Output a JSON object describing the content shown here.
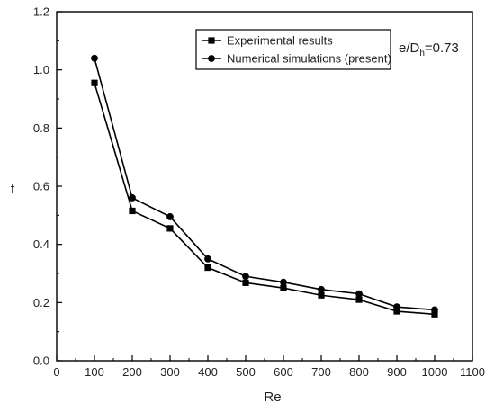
{
  "chart_data": {
    "type": "line",
    "title": "",
    "xlabel": "Re",
    "ylabel": "f",
    "xlim": [
      0,
      1100
    ],
    "ylim": [
      0.0,
      1.2
    ],
    "x_ticks": [
      "0",
      "100",
      "200",
      "300",
      "400",
      "500",
      "600",
      "700",
      "800",
      "900",
      "1000",
      "1100"
    ],
    "y_ticks": [
      "0.0",
      "0.2",
      "0.4",
      "0.6",
      "0.8",
      "1.0",
      "1.2"
    ],
    "grid": false,
    "legend_position": "top-right",
    "x": [
      100,
      200,
      300,
      400,
      500,
      600,
      700,
      800,
      900,
      1000
    ],
    "series": [
      {
        "name": "Experimental results",
        "marker": "square",
        "color": "#000000",
        "values": [
          0.955,
          0.515,
          0.455,
          0.32,
          0.268,
          0.25,
          0.225,
          0.21,
          0.17,
          0.16
        ]
      },
      {
        "name": "Numerical simulations (present)",
        "marker": "circle",
        "color": "#000000",
        "values": [
          1.04,
          0.56,
          0.495,
          0.35,
          0.29,
          0.27,
          0.245,
          0.23,
          0.185,
          0.175
        ]
      }
    ],
    "annotation": {
      "main": "e/D",
      "sub": "h",
      "tail": "=0.73"
    }
  }
}
